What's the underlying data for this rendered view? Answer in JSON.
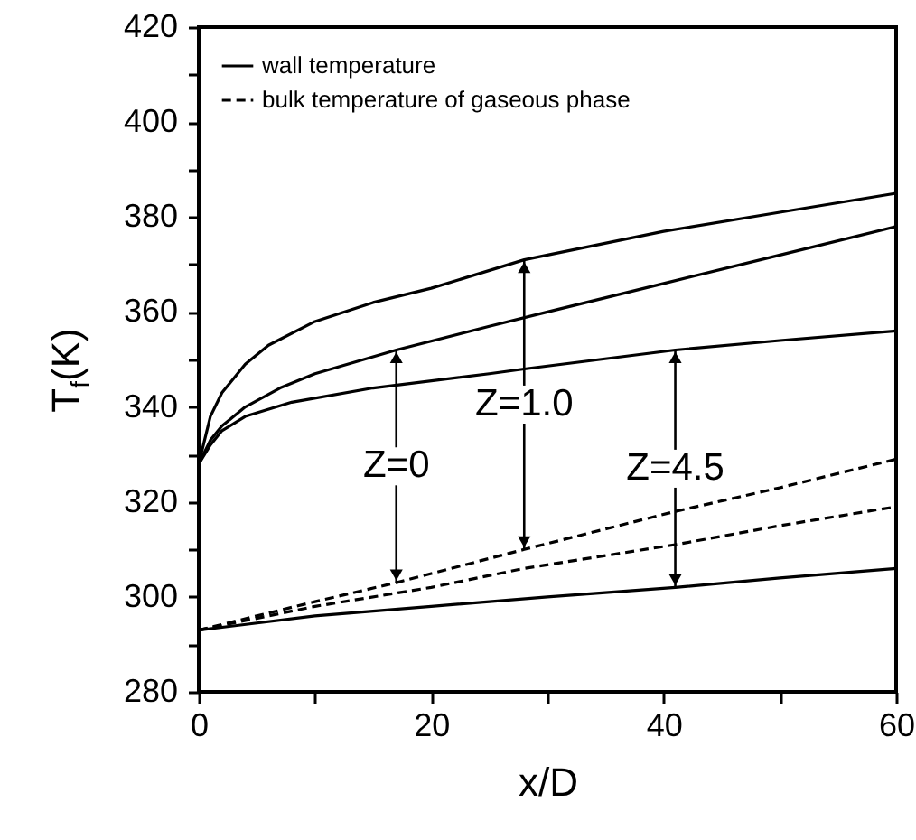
{
  "chart_data": {
    "type": "line",
    "xlabel": "x/D",
    "ylabel": "T$_{f}$(K)",
    "xlim": [
      0,
      60
    ],
    "xticks": [
      0,
      {
        "value": 10,
        "label": null
      },
      20,
      {
        "value": 30,
        "label": null
      },
      40,
      {
        "value": 50,
        "label": null
      },
      60
    ],
    "ylim": [
      280,
      420
    ],
    "yticks": [
      280,
      {
        "value": 290,
        "label": null
      },
      300,
      {
        "value": 310,
        "label": null
      },
      320,
      {
        "value": 330,
        "label": null
      },
      340,
      {
        "value": 350,
        "label": null
      },
      360,
      {
        "value": 370,
        "label": null
      },
      380,
      {
        "value": 390,
        "label": null
      },
      400,
      {
        "value": 410,
        "label": null
      },
      420
    ],
    "grid": false,
    "legend": "top left",
    "marker": "none",
    "series": [
      {
        "name": "wall temperature",
        "color": "#000000",
        "line_style": "solid",
        "x": [
          0,
          1,
          2,
          4,
          6,
          10,
          15,
          20,
          28,
          40,
          50,
          60
        ],
        "values": [
          328,
          338,
          343,
          349,
          353,
          358,
          362,
          365,
          371,
          377,
          381,
          385
        ]
      },
      {
        "color": "#000000",
        "line_style": "solid",
        "x": [
          0,
          1,
          2,
          4,
          7,
          10,
          17,
          25,
          30,
          40,
          50,
          60
        ],
        "values": [
          328,
          333,
          336,
          340,
          344,
          347,
          352,
          357,
          360,
          366,
          372,
          378
        ]
      },
      {
        "color": "#000000",
        "line_style": "solid",
        "x": [
          0,
          1,
          2,
          4,
          8,
          15,
          25,
          28,
          41,
          50,
          60
        ],
        "values": [
          328,
          332,
          335,
          338,
          341,
          344,
          347,
          348,
          352,
          354,
          356
        ]
      },
      {
        "name": "bulk temperature of gaseous phase",
        "color": "#000000",
        "line_style": "dashed",
        "x": [
          0,
          10,
          17,
          28,
          41,
          50,
          60
        ],
        "values": [
          293,
          299,
          303,
          310,
          318,
          323,
          329
        ]
      },
      {
        "color": "#000000",
        "line_style": "dashed",
        "x": [
          0,
          10,
          20,
          28,
          41,
          50,
          60
        ],
        "values": [
          293,
          298,
          302,
          306,
          311,
          315,
          319
        ]
      },
      {
        "color": "#000000",
        "line_style": "solid",
        "x": [
          0,
          10,
          20,
          30,
          41,
          50,
          60
        ],
        "values": [
          293,
          296,
          298,
          300,
          302,
          304,
          306
        ]
      }
    ],
    "annotations": [
      {
        "text": "Z=0",
        "x": 17,
        "y": 352
      },
      {
        "text": "Z=1.0",
        "x": 28,
        "y": 371
      },
      {
        "text": "Z=4.5",
        "x": 41,
        "y": 352
      }
    ]
  }
}
